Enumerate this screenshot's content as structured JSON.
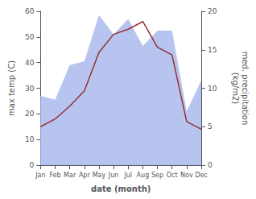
{
  "chart_data": {
    "type": "line",
    "categories": [
      "Jan",
      "Feb",
      "Mar",
      "Apr",
      "May",
      "Jun",
      "Jul",
      "Aug",
      "Sep",
      "Oct",
      "Nov",
      "Dec"
    ],
    "xlabel": "date (month)",
    "ylabel": "max temp (C)",
    "y2label": "med. precipitation\n(kg/m2)",
    "series": [
      {
        "type": "area",
        "color": "#b8c4f0",
        "axis": "y2",
        "values": [
          9,
          8.5,
          13,
          13.5,
          19.5,
          17,
          19,
          15.5,
          17.5,
          17.5,
          7,
          11
        ]
      },
      {
        "type": "line",
        "color": "#943030",
        "values": [
          15,
          18,
          23,
          29,
          44,
          51,
          53,
          56,
          46,
          43,
          17,
          14
        ]
      }
    ],
    "ylim": [
      0,
      60
    ],
    "yticks": [
      0,
      10,
      20,
      30,
      40,
      50,
      60
    ],
    "y2lim": [
      0,
      20
    ],
    "y2ticks": [
      0,
      5,
      10,
      15,
      20
    ],
    "grid": false
  }
}
